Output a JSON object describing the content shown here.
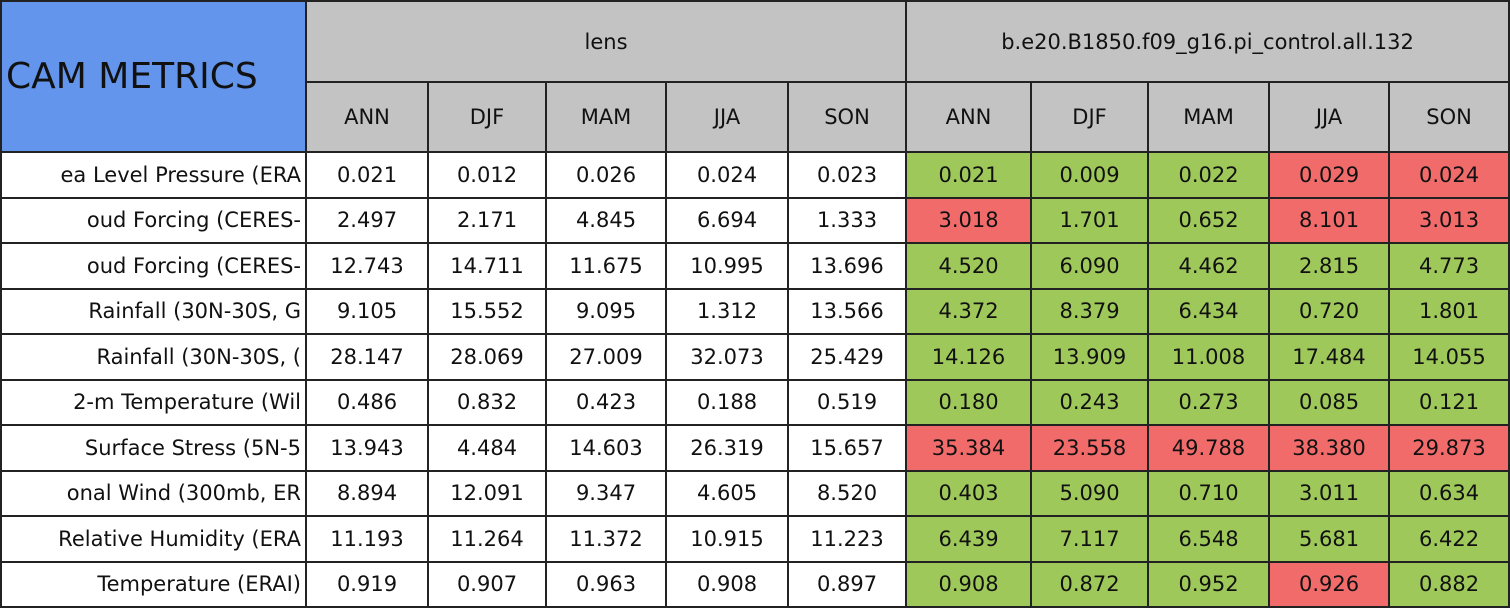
{
  "table": {
    "title": "CAM METRICS",
    "groups": [
      {
        "name": "lens",
        "seasons": [
          "ANN",
          "DJF",
          "MAM",
          "JJA",
          "SON"
        ]
      },
      {
        "name": "b.e20.B1850.f09_g16.pi_control.all.132",
        "seasons": [
          "ANN",
          "DJF",
          "MAM",
          "JJA",
          "SON"
        ]
      }
    ],
    "rows": [
      {
        "label": "ea Level Pressure (ERA",
        "cells": [
          "0.021",
          "0.012",
          "0.026",
          "0.024",
          "0.023",
          "0.021",
          "0.009",
          "0.022",
          "0.029",
          "0.024"
        ],
        "colors": [
          "#ffffff",
          "#ffffff",
          "#ffffff",
          "#ffffff",
          "#ffffff",
          "#9fc85a",
          "#9fc85a",
          "#9fc85a",
          "#f26b6b",
          "#f26b6b"
        ]
      },
      {
        "label": "oud Forcing (CERES-",
        "cells": [
          "2.497",
          "2.171",
          "4.845",
          "6.694",
          "1.333",
          "3.018",
          "1.701",
          "0.652",
          "8.101",
          "3.013"
        ],
        "colors": [
          "#ffffff",
          "#ffffff",
          "#ffffff",
          "#ffffff",
          "#ffffff",
          "#f26b6b",
          "#9fc85a",
          "#9fc85a",
          "#f26b6b",
          "#f26b6b"
        ]
      },
      {
        "label": "oud Forcing (CERES-",
        "cells": [
          "12.743",
          "14.711",
          "11.675",
          "10.995",
          "13.696",
          "4.520",
          "6.090",
          "4.462",
          "2.815",
          "4.773"
        ],
        "colors": [
          "#ffffff",
          "#ffffff",
          "#ffffff",
          "#ffffff",
          "#ffffff",
          "#9fc85a",
          "#9fc85a",
          "#9fc85a",
          "#9fc85a",
          "#9fc85a"
        ]
      },
      {
        "label": "Rainfall (30N-30S, G",
        "cells": [
          "9.105",
          "15.552",
          "9.095",
          "1.312",
          "13.566",
          "4.372",
          "8.379",
          "6.434",
          "0.720",
          "1.801"
        ],
        "colors": [
          "#ffffff",
          "#ffffff",
          "#ffffff",
          "#ffffff",
          "#ffffff",
          "#9fc85a",
          "#9fc85a",
          "#9fc85a",
          "#9fc85a",
          "#9fc85a"
        ]
      },
      {
        "label": "Rainfall (30N-30S, (",
        "cells": [
          "28.147",
          "28.069",
          "27.009",
          "32.073",
          "25.429",
          "14.126",
          "13.909",
          "11.008",
          "17.484",
          "14.055"
        ],
        "colors": [
          "#ffffff",
          "#ffffff",
          "#ffffff",
          "#ffffff",
          "#ffffff",
          "#9fc85a",
          "#9fc85a",
          "#9fc85a",
          "#9fc85a",
          "#9fc85a"
        ]
      },
      {
        "label": "2-m Temperature (Wil",
        "cells": [
          "0.486",
          "0.832",
          "0.423",
          "0.188",
          "0.519",
          "0.180",
          "0.243",
          "0.273",
          "0.085",
          "0.121"
        ],
        "colors": [
          "#ffffff",
          "#ffffff",
          "#ffffff",
          "#ffffff",
          "#ffffff",
          "#9fc85a",
          "#9fc85a",
          "#9fc85a",
          "#9fc85a",
          "#9fc85a"
        ]
      },
      {
        "label": "Surface Stress (5N-5",
        "cells": [
          "13.943",
          "4.484",
          "14.603",
          "26.319",
          "15.657",
          "35.384",
          "23.558",
          "49.788",
          "38.380",
          "29.873"
        ],
        "colors": [
          "#ffffff",
          "#ffffff",
          "#ffffff",
          "#ffffff",
          "#ffffff",
          "#f26b6b",
          "#f26b6b",
          "#f26b6b",
          "#f26b6b",
          "#f26b6b"
        ]
      },
      {
        "label": "onal Wind (300mb, ER",
        "cells": [
          "8.894",
          "12.091",
          "9.347",
          "4.605",
          "8.520",
          "0.403",
          "5.090",
          "0.710",
          "3.011",
          "0.634"
        ],
        "colors": [
          "#ffffff",
          "#ffffff",
          "#ffffff",
          "#ffffff",
          "#ffffff",
          "#9fc85a",
          "#9fc85a",
          "#9fc85a",
          "#9fc85a",
          "#9fc85a"
        ]
      },
      {
        "label": "Relative Humidity (ERA",
        "cells": [
          "11.193",
          "11.264",
          "11.372",
          "10.915",
          "11.223",
          "6.439",
          "7.117",
          "6.548",
          "5.681",
          "6.422"
        ],
        "colors": [
          "#ffffff",
          "#ffffff",
          "#ffffff",
          "#ffffff",
          "#ffffff",
          "#9fc85a",
          "#9fc85a",
          "#9fc85a",
          "#9fc85a",
          "#9fc85a"
        ]
      },
      {
        "label": "Temperature (ERAI)",
        "cells": [
          "0.919",
          "0.907",
          "0.963",
          "0.908",
          "0.897",
          "0.908",
          "0.872",
          "0.952",
          "0.926",
          "0.882"
        ],
        "colors": [
          "#ffffff",
          "#ffffff",
          "#ffffff",
          "#ffffff",
          "#ffffff",
          "#9fc85a",
          "#9fc85a",
          "#9fc85a",
          "#f26b6b",
          "#9fc85a"
        ]
      }
    ]
  }
}
